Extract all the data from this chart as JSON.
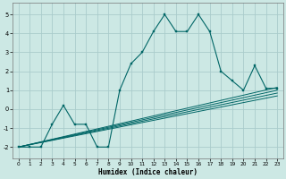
{
  "title": "",
  "xlabel": "Humidex (Indice chaleur)",
  "bg_color": "#cce8e4",
  "grid_color": "#aacccc",
  "line_color": "#006666",
  "xlim": [
    -0.5,
    23.5
  ],
  "ylim": [
    -2.6,
    5.6
  ],
  "xticks": [
    0,
    1,
    2,
    3,
    4,
    5,
    6,
    7,
    8,
    9,
    10,
    11,
    12,
    13,
    14,
    15,
    16,
    17,
    18,
    19,
    20,
    21,
    22,
    23
  ],
  "yticks": [
    -2,
    -1,
    0,
    1,
    2,
    3,
    4,
    5
  ],
  "main_line": {
    "x": [
      0,
      1,
      2,
      3,
      4,
      5,
      6,
      7,
      8,
      9,
      10,
      11,
      12,
      13,
      14,
      15,
      16,
      17,
      18,
      19,
      20,
      21,
      22,
      23
    ],
    "y": [
      -2,
      -2,
      -2,
      -0.8,
      0.2,
      -0.8,
      -0.8,
      -2,
      -2,
      1,
      2.4,
      3,
      4.1,
      5,
      4.1,
      4.1,
      5,
      4.1,
      2,
      1.5,
      1,
      2.3,
      1.1,
      1.1
    ]
  },
  "ref_lines": [
    {
      "x": [
        0,
        23
      ],
      "y": [
        -2,
        1.15
      ]
    },
    {
      "x": [
        0,
        23
      ],
      "y": [
        -2,
        1.0
      ]
    },
    {
      "x": [
        0,
        23
      ],
      "y": [
        -2,
        0.85
      ]
    },
    {
      "x": [
        0,
        23
      ],
      "y": [
        -2,
        0.7
      ]
    }
  ]
}
